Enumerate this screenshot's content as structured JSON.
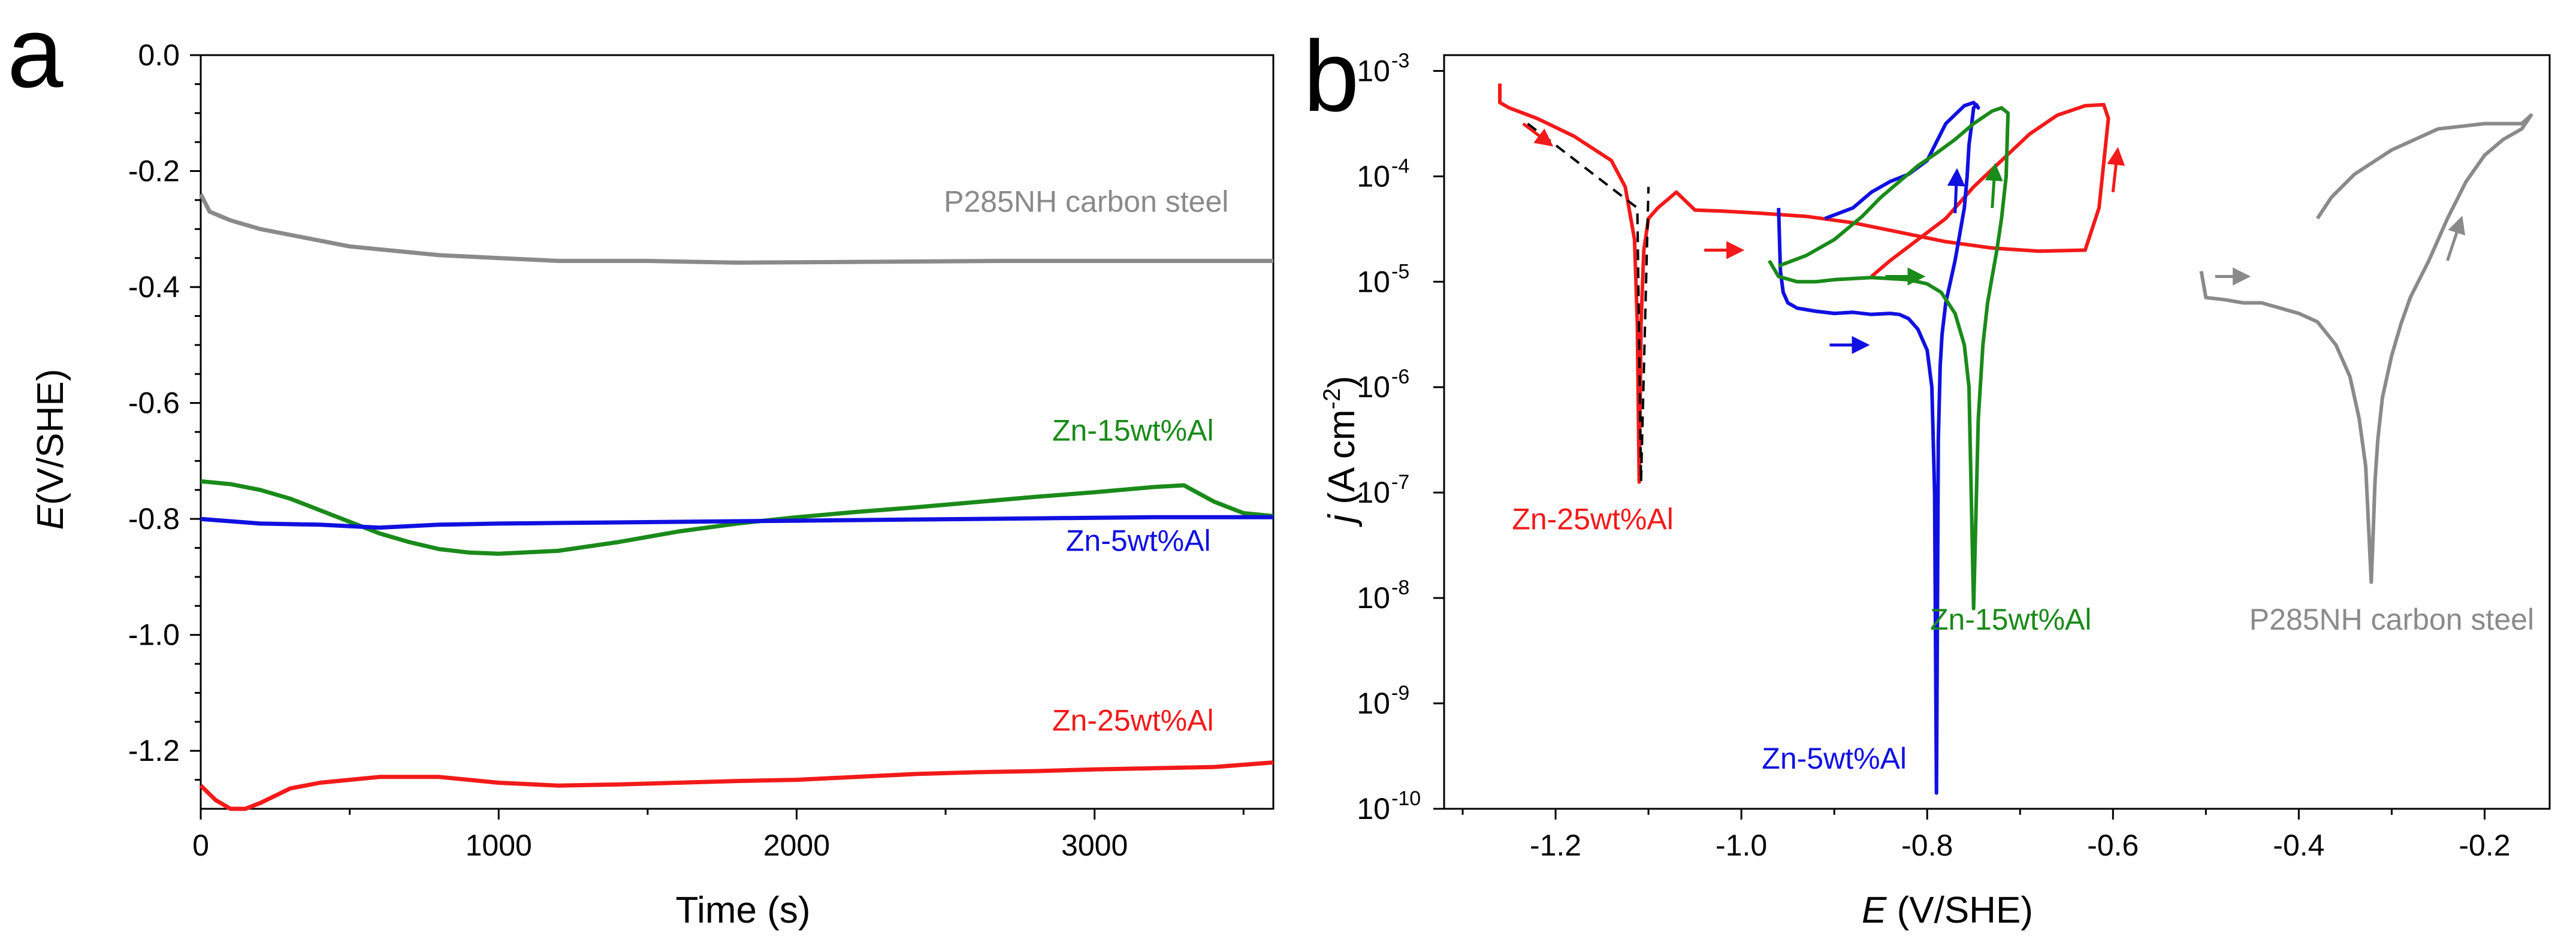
{
  "panels": {
    "a": {
      "letter": "a"
    },
    "b": {
      "letter": "b"
    }
  },
  "chart_data": [
    {
      "id": "a",
      "type": "line",
      "title": "",
      "xlabel": "Time (s)",
      "ylabel_italic": "E",
      "ylabel_rest": "(V/SHE)",
      "xlim": [
        0,
        3600
      ],
      "ylim": [
        -1.3,
        0.0
      ],
      "xticks": [
        0,
        1000,
        2000,
        3000
      ],
      "xtick_labels": [
        "0",
        "1000",
        "2000",
        "3000"
      ],
      "yticks": [
        0.0,
        -0.2,
        -0.4,
        -0.6,
        -0.8,
        -1.0,
        -1.2
      ],
      "ytick_labels": [
        "0.0",
        "-0.2",
        "-0.4",
        "-0.6",
        "-0.8",
        "-1.0",
        "-1.2"
      ],
      "grid": false,
      "series": [
        {
          "name": "P285NH carbon steel",
          "color": "#8a8a8a",
          "label_at": [
            3450,
            -0.27
          ],
          "x": [
            0,
            30,
            100,
            200,
            300,
            400,
            500,
            600,
            800,
            1000,
            1200,
            1500,
            1800,
            2100,
            2400,
            2700,
            3000,
            3300,
            3600
          ],
          "y": [
            -0.24,
            -0.27,
            -0.285,
            -0.3,
            -0.31,
            -0.32,
            -0.33,
            -0.335,
            -0.345,
            -0.35,
            -0.355,
            -0.355,
            -0.358,
            -0.357,
            -0.356,
            -0.355,
            -0.355,
            -0.355,
            -0.355
          ]
        },
        {
          "name": "Zn-15wt%Al",
          "color": "#1a8a1a",
          "label_at": [
            3400,
            -0.665
          ],
          "x": [
            0,
            100,
            200,
            300,
            400,
            500,
            600,
            700,
            800,
            900,
            1000,
            1200,
            1400,
            1600,
            1800,
            2000,
            2200,
            2400,
            2600,
            2800,
            3000,
            3200,
            3300,
            3400,
            3500,
            3600
          ],
          "y": [
            -0.735,
            -0.74,
            -0.75,
            -0.765,
            -0.785,
            -0.805,
            -0.825,
            -0.84,
            -0.852,
            -0.858,
            -0.86,
            -0.855,
            -0.84,
            -0.822,
            -0.808,
            -0.797,
            -0.788,
            -0.78,
            -0.771,
            -0.762,
            -0.754,
            -0.745,
            -0.742,
            -0.77,
            -0.79,
            -0.795
          ]
        },
        {
          "name": "Zn-5wt%Al",
          "color": "#1010e0",
          "label_at": [
            3390,
            -0.855
          ],
          "x": [
            0,
            200,
            400,
            600,
            800,
            1000,
            1200,
            1400,
            1600,
            1800,
            2000,
            2200,
            2400,
            2600,
            2800,
            3000,
            3200,
            3400,
            3600
          ],
          "y": [
            -0.8,
            -0.808,
            -0.81,
            -0.815,
            -0.81,
            -0.808,
            -0.807,
            -0.806,
            -0.805,
            -0.804,
            -0.803,
            -0.802,
            -0.801,
            -0.8,
            -0.799,
            -0.798,
            -0.797,
            -0.797,
            -0.797
          ]
        },
        {
          "name": "Zn-25wt%Al",
          "color": "#f21a1a",
          "label_at": [
            3400,
            -1.165
          ],
          "x": [
            0,
            50,
            100,
            150,
            200,
            300,
            400,
            500,
            600,
            800,
            1000,
            1200,
            1400,
            1600,
            1800,
            2000,
            2200,
            2400,
            2600,
            2800,
            3000,
            3200,
            3400,
            3600
          ],
          "y": [
            -1.26,
            -1.285,
            -1.3,
            -1.3,
            -1.29,
            -1.265,
            -1.255,
            -1.25,
            -1.245,
            -1.245,
            -1.255,
            -1.26,
            -1.258,
            -1.255,
            -1.252,
            -1.25,
            -1.245,
            -1.24,
            -1.237,
            -1.235,
            -1.232,
            -1.23,
            -1.228,
            -1.22
          ]
        }
      ]
    },
    {
      "id": "b",
      "type": "line",
      "yscale": "log",
      "title": "",
      "xlabel_italic": "E",
      "xlabel_rest": " (V/SHE)",
      "ylabel_italic": "j",
      "ylabel_rest": " (A cm",
      "ylabel_sup": "-2",
      "ylabel_close": ")",
      "xlim": [
        -1.32,
        -0.13
      ],
      "ylim_exp": [
        -10,
        -2.85
      ],
      "xticks": [
        -1.2,
        -1.0,
        -0.8,
        -0.6,
        -0.4,
        -0.2
      ],
      "xtick_labels": [
        "-1.2",
        "-1.0",
        "-0.8",
        "-0.6",
        "-0.4",
        "-0.2"
      ],
      "yticks_exp": [
        -10,
        -9,
        -8,
        -7,
        -6,
        -5,
        -4,
        -3
      ],
      "ytick_base": "10",
      "ytick_exps": [
        "-10",
        "-9",
        "-8",
        "-7",
        "-6",
        "-5",
        "-4",
        "-3"
      ],
      "grid": false,
      "series": [
        {
          "name": "Zn-25wt%Al",
          "color": "#f21a1a",
          "label_at": [
            -1.16,
            -7.35
          ],
          "x": [
            -1.26,
            -1.26,
            -1.25,
            -1.22,
            -1.18,
            -1.14,
            -1.125,
            -1.115,
            -1.112,
            -1.11,
            -1.108,
            -1.105,
            -1.1,
            -1.09,
            -1.07,
            -1.05,
            -1.02,
            -0.98,
            -0.93,
            -0.88,
            -0.83,
            -0.78,
            -0.73,
            -0.68,
            -0.63,
            -0.615,
            -0.605,
            -0.61,
            -0.63,
            -0.66,
            -0.69,
            -0.72,
            -0.75,
            -0.78,
            -0.81,
            -0.84,
            -0.86
          ],
          "y": [
            -3.12,
            -3.3,
            -3.35,
            -3.45,
            -3.62,
            -3.85,
            -4.1,
            -4.6,
            -5.4,
            -6.9,
            -5.4,
            -4.7,
            -4.4,
            -4.3,
            -4.15,
            -4.32,
            -4.33,
            -4.35,
            -4.38,
            -4.44,
            -4.53,
            -4.62,
            -4.68,
            -4.71,
            -4.7,
            -4.3,
            -3.45,
            -3.32,
            -3.33,
            -3.42,
            -3.6,
            -3.85,
            -4.1,
            -4.4,
            -4.6,
            -4.8,
            -4.95
          ]
        },
        {
          "name": "Zn-5wt%Al",
          "color": "#1010e0",
          "label_at": [
            -0.9,
            -9.62
          ],
          "x": [
            -0.96,
            -0.958,
            -0.955,
            -0.95,
            -0.94,
            -0.92,
            -0.9,
            -0.88,
            -0.86,
            -0.84,
            -0.83,
            -0.82,
            -0.81,
            -0.8,
            -0.795,
            -0.792,
            -0.79,
            -0.788,
            -0.786,
            -0.784,
            -0.78,
            -0.775,
            -0.77,
            -0.765,
            -0.76,
            -0.757,
            -0.755,
            -0.752,
            -0.75,
            -0.747,
            -0.745,
            -0.75,
            -0.76,
            -0.78,
            -0.8,
            -0.82,
            -0.84,
            -0.86,
            -0.88,
            -0.91
          ],
          "y": [
            -4.3,
            -4.9,
            -5.1,
            -5.2,
            -5.25,
            -5.28,
            -5.3,
            -5.29,
            -5.31,
            -5.3,
            -5.31,
            -5.35,
            -5.45,
            -5.65,
            -6.0,
            -7.0,
            -9.85,
            -6.5,
            -5.8,
            -5.5,
            -5.2,
            -5.0,
            -4.8,
            -4.55,
            -4.3,
            -4.0,
            -3.7,
            -3.5,
            -3.35,
            -3.32,
            -3.35,
            -3.3,
            -3.33,
            -3.5,
            -3.85,
            -3.98,
            -4.05,
            -4.15,
            -4.3,
            -4.4
          ]
        },
        {
          "name": "Zn-15wt%Al",
          "color": "#1a8a1a",
          "label_at": [
            -0.71,
            -8.3
          ],
          "x": [
            -0.97,
            -0.96,
            -0.94,
            -0.92,
            -0.9,
            -0.88,
            -0.86,
            -0.84,
            -0.82,
            -0.8,
            -0.785,
            -0.77,
            -0.76,
            -0.755,
            -0.75,
            -0.745,
            -0.74,
            -0.735,
            -0.73,
            -0.725,
            -0.72,
            -0.715,
            -0.713,
            -0.72,
            -0.73,
            -0.75,
            -0.77,
            -0.79,
            -0.81,
            -0.83,
            -0.85,
            -0.87,
            -0.9,
            -0.93,
            -0.96
          ],
          "y": [
            -4.8,
            -4.95,
            -5.0,
            -5.0,
            -4.98,
            -4.97,
            -4.96,
            -4.97,
            -4.98,
            -5.02,
            -5.1,
            -5.3,
            -5.6,
            -6.0,
            -8.1,
            -6.3,
            -5.6,
            -5.2,
            -4.95,
            -4.7,
            -4.4,
            -4.0,
            -3.4,
            -3.35,
            -3.38,
            -3.5,
            -3.65,
            -3.78,
            -3.9,
            -4.05,
            -4.2,
            -4.38,
            -4.6,
            -4.75,
            -4.85
          ]
        },
        {
          "name": "P285NH carbon steel",
          "color": "#8a8a8a",
          "label_at": [
            -0.3,
            -8.3
          ],
          "x": [
            -0.505,
            -0.5,
            -0.48,
            -0.46,
            -0.44,
            -0.42,
            -0.4,
            -0.38,
            -0.36,
            -0.345,
            -0.335,
            -0.328,
            -0.325,
            -0.322,
            -0.32,
            -0.318,
            -0.315,
            -0.31,
            -0.3,
            -0.29,
            -0.28,
            -0.26,
            -0.24,
            -0.22,
            -0.2,
            -0.18,
            -0.16,
            -0.15,
            -0.16,
            -0.2,
            -0.25,
            -0.3,
            -0.34,
            -0.365,
            -0.38
          ],
          "y": [
            -4.9,
            -5.15,
            -5.17,
            -5.2,
            -5.2,
            -5.25,
            -5.3,
            -5.38,
            -5.6,
            -5.9,
            -6.3,
            -6.75,
            -7.3,
            -7.85,
            -7.4,
            -6.9,
            -6.5,
            -6.1,
            -5.7,
            -5.4,
            -5.15,
            -4.8,
            -4.4,
            -4.05,
            -3.8,
            -3.65,
            -3.55,
            -3.42,
            -3.5,
            -3.5,
            -3.55,
            -3.75,
            -3.98,
            -4.2,
            -4.4
          ]
        },
        {
          "name": "Zn-25wt%Al Tafel fit (dashed)",
          "color": "#000000",
          "dashed": true,
          "show_label": false,
          "x": [
            -1.23,
            -1.112,
            -1.108,
            -1.1
          ],
          "y": [
            -3.5,
            -4.3,
            -6.9,
            -4.1
          ]
        }
      ],
      "arrows": [
        {
          "color": "#f21a1a",
          "x0": -1.235,
          "y0": -3.5,
          "x1": -1.205,
          "y1": -3.7
        },
        {
          "color": "#f21a1a",
          "x0": -1.04,
          "y0": -4.7,
          "x1": -1.0,
          "y1": -4.7
        },
        {
          "color": "#f21a1a",
          "x0": -0.6,
          "y0": -4.15,
          "x1": -0.595,
          "y1": -3.75
        },
        {
          "color": "#1a8a1a",
          "x0": -0.845,
          "y0": -4.95,
          "x1": -0.805,
          "y1": -4.95
        },
        {
          "color": "#1a8a1a",
          "x0": -0.73,
          "y0": -4.3,
          "x1": -0.727,
          "y1": -3.9
        },
        {
          "color": "#1010e0",
          "x0": -0.905,
          "y0": -5.6,
          "x1": -0.865,
          "y1": -5.6
        },
        {
          "color": "#1010e0",
          "x0": -0.77,
          "y0": -4.35,
          "x1": -0.768,
          "y1": -3.95
        },
        {
          "color": "#8a8a8a",
          "x0": -0.49,
          "y0": -4.95,
          "x1": -0.455,
          "y1": -4.95
        },
        {
          "color": "#8a8a8a",
          "x0": -0.24,
          "y0": -4.8,
          "x1": -0.225,
          "y1": -4.4
        }
      ]
    }
  ]
}
